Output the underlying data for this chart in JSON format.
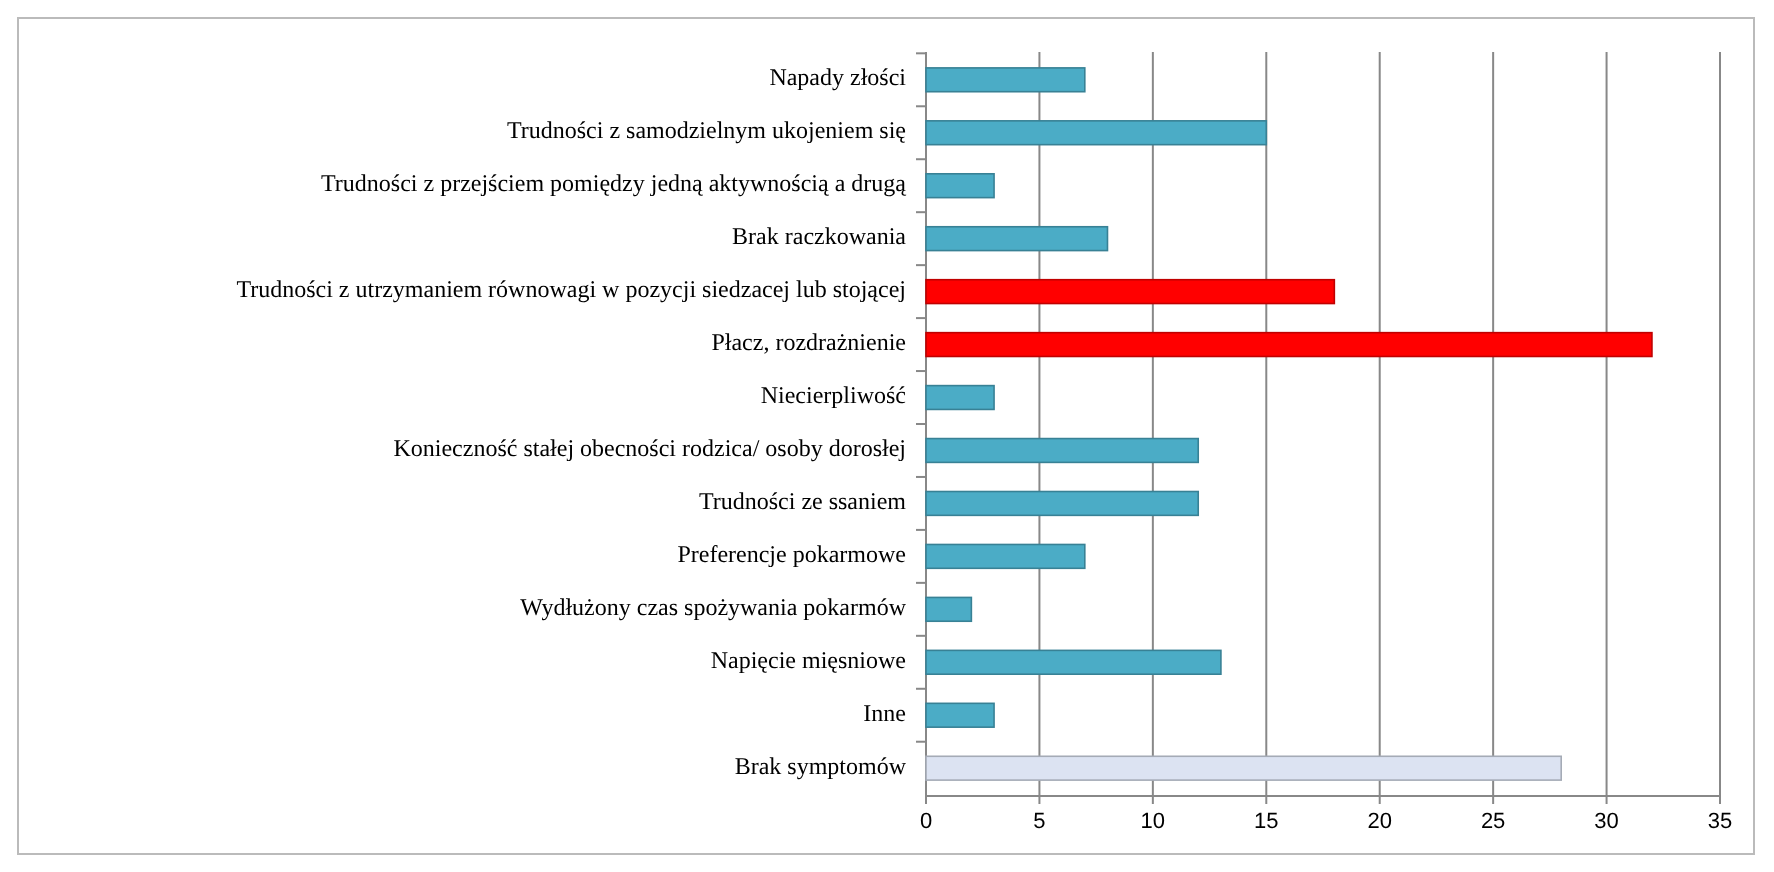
{
  "chart_data": {
    "type": "bar",
    "orientation": "horizontal",
    "categories": [
      "Napady złości",
      "Trudności z samodzielnym ukojeniem się",
      "Trudności z przejściem pomiędzy jedną aktywnością a drugą",
      "Brak raczkowania",
      "Trudności z utrzymaniem równowagi w pozycji siedzacej lub stojącej",
      "Płacz, rozdrażnienie",
      "Niecierpliwość",
      "Konieczność stałej obecności rodzica/ osoby dorosłej",
      "Trudności ze ssaniem",
      "Preferencje pokarmowe",
      "Wydłużony czas spożywania pokarmów",
      "Napięcie mięsniowe",
      "Inne",
      "Brak symptomów"
    ],
    "values": [
      7,
      15,
      3,
      8,
      18,
      32,
      3,
      12,
      12,
      7,
      2,
      13,
      3,
      28
    ],
    "colors": [
      "#4bacc6",
      "#4bacc6",
      "#4bacc6",
      "#4bacc6",
      "#ff0000",
      "#ff0000",
      "#4bacc6",
      "#4bacc6",
      "#4bacc6",
      "#4bacc6",
      "#4bacc6",
      "#4bacc6",
      "#4bacc6",
      "#dce3f2"
    ],
    "xlim": [
      0,
      35
    ],
    "xticks": [
      0,
      5,
      10,
      15,
      20,
      25,
      30,
      35
    ],
    "grid": "x"
  }
}
